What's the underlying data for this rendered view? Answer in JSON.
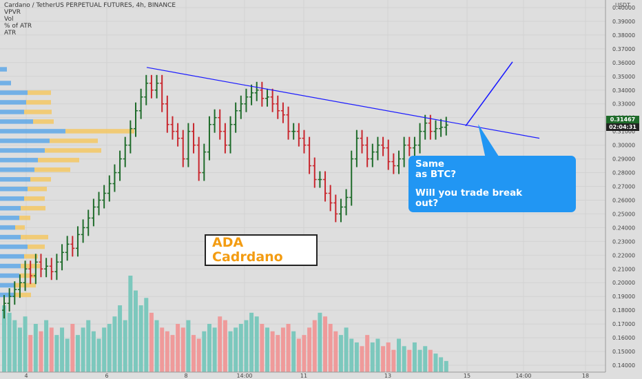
{
  "header": {
    "title": "Cardano / TetherUS PERPETUAL FUTURES, 4h, BINANCE",
    "indicators": [
      "VPVR",
      "Vol",
      "% of ATR",
      "ATR"
    ]
  },
  "price_axis": {
    "unit": "USDT",
    "ticks": [
      "0.40000",
      "0.39000",
      "0.38000",
      "0.37000",
      "0.36000",
      "0.35000",
      "0.34000",
      "0.33000",
      "0.32000",
      "0.31000",
      "0.30000",
      "0.29000",
      "0.28000",
      "0.27000",
      "0.26000",
      "0.25000",
      "0.24000",
      "0.23000",
      "0.22000",
      "0.21000",
      "0.20000",
      "0.19000",
      "0.18000",
      "0.17000",
      "0.16000",
      "0.15000",
      "0.14000"
    ],
    "last_price": "0.31467",
    "countdown": "02:04:31"
  },
  "time_axis": {
    "ticks": [
      "4",
      "6",
      "8",
      "14:00",
      "11",
      "13",
      "15",
      "14:00",
      "18"
    ]
  },
  "annotations": {
    "logo_line1": "ADA",
    "logo_line2": "Cadrdano",
    "callout_line1": "Same",
    "callout_line2": "as BTC?",
    "callout_line3": "Will you trade break",
    "callout_line4": "out?"
  },
  "colors": {
    "background": "#dedede",
    "bull": "#1e6b2a",
    "bear": "#c8262d",
    "trendline": "#1a1aff",
    "callout": "#2196f3",
    "logo_text": "#f39c12",
    "vol_up": "#7cc8bd",
    "vol_down": "#ef9a9a",
    "vp_up": "#5fa8e8",
    "vp_down": "#f5c864"
  },
  "chart_data": {
    "type": "ohlc",
    "price_range": [
      0.135,
      0.4055
    ],
    "price_closes": [
      0.185,
      0.19,
      0.195,
      0.2,
      0.21,
      0.205,
      0.215,
      0.21,
      0.212,
      0.208,
      0.215,
      0.222,
      0.228,
      0.225,
      0.235,
      0.24,
      0.247,
      0.255,
      0.26,
      0.265,
      0.272,
      0.28,
      0.29,
      0.3,
      0.312,
      0.325,
      0.335,
      0.345,
      0.34,
      0.345,
      0.33,
      0.315,
      0.31,
      0.305,
      0.29,
      0.31,
      0.3,
      0.28,
      0.295,
      0.315,
      0.32,
      0.31,
      0.3,
      0.315,
      0.325,
      0.33,
      0.335,
      0.338,
      0.34,
      0.334,
      0.335,
      0.33,
      0.325,
      0.322,
      0.31,
      0.31,
      0.305,
      0.3,
      0.285,
      0.275,
      0.275,
      0.265,
      0.258,
      0.25,
      0.255,
      0.262,
      0.29,
      0.305,
      0.3,
      0.29,
      0.295,
      0.3,
      0.298,
      0.288,
      0.285,
      0.29,
      0.3,
      0.298,
      0.3,
      0.31,
      0.316,
      0.31,
      0.312,
      0.313,
      0.3146
    ],
    "trendline": [
      0.3565,
      0.305
    ],
    "projection": [
      0.314,
      0.3605
    ],
    "volume": [
      18,
      16,
      14,
      12,
      15,
      10,
      13,
      11,
      14,
      12,
      10,
      12,
      9,
      13,
      10,
      12,
      14,
      11,
      9,
      12,
      13,
      15,
      18,
      14,
      26,
      22,
      18,
      20,
      16,
      14,
      12,
      11,
      10,
      13,
      12,
      14,
      10,
      9,
      11,
      13,
      12,
      15,
      14,
      11,
      12,
      13,
      14,
      16,
      15,
      13,
      12,
      11,
      10,
      12,
      13,
      11,
      9,
      10,
      12,
      14,
      16,
      15,
      13,
      11,
      10,
      12,
      9,
      8,
      7,
      10,
      8,
      9,
      7,
      8,
      6,
      9,
      7,
      6,
      8,
      6,
      7,
      6,
      5,
      4,
      3
    ],
    "volume_profile": [
      {
        "price": 0.355,
        "up": 10,
        "down": 0
      },
      {
        "price": 0.345,
        "up": 16,
        "down": 0
      },
      {
        "price": 0.338,
        "up": 40,
        "down": 34
      },
      {
        "price": 0.331,
        "up": 38,
        "down": 36
      },
      {
        "price": 0.324,
        "up": 35,
        "down": 40
      },
      {
        "price": 0.317,
        "up": 48,
        "down": 30
      },
      {
        "price": 0.31,
        "up": 95,
        "down": 100
      },
      {
        "price": 0.303,
        "up": 72,
        "down": 70
      },
      {
        "price": 0.296,
        "up": 65,
        "down": 82
      },
      {
        "price": 0.289,
        "up": 55,
        "down": 60
      },
      {
        "price": 0.282,
        "up": 50,
        "down": 52
      },
      {
        "price": 0.275,
        "up": 44,
        "down": 30
      },
      {
        "price": 0.268,
        "up": 40,
        "down": 28
      },
      {
        "price": 0.261,
        "up": 35,
        "down": 30
      },
      {
        "price": 0.254,
        "up": 30,
        "down": 36
      },
      {
        "price": 0.247,
        "up": 28,
        "down": 16
      },
      {
        "price": 0.24,
        "up": 22,
        "down": 14
      },
      {
        "price": 0.233,
        "up": 30,
        "down": 40
      },
      {
        "price": 0.226,
        "up": 40,
        "down": 25
      },
      {
        "price": 0.219,
        "up": 35,
        "down": 20
      },
      {
        "price": 0.212,
        "up": 30,
        "down": 28
      },
      {
        "price": 0.205,
        "up": 28,
        "down": 25
      },
      {
        "price": 0.198,
        "up": 22,
        "down": 30
      },
      {
        "price": 0.191,
        "up": 20,
        "down": 25
      }
    ]
  }
}
